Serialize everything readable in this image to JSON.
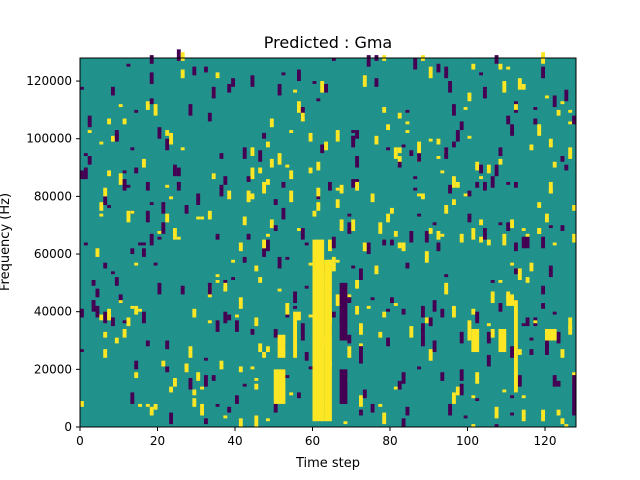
{
  "chart_data": {
    "type": "heatmap",
    "title": "Predicted : Gma",
    "xlabel": "Time step",
    "ylabel": "Frequency (Hz)",
    "x_range": [
      0,
      128
    ],
    "y_range": [
      0,
      128000
    ],
    "x_ticks": [
      0,
      20,
      40,
      60,
      80,
      100,
      120
    ],
    "y_ticks": [
      0,
      20000,
      40000,
      60000,
      80000,
      100000,
      120000
    ],
    "x_tick_labels": [
      "0",
      "20",
      "40",
      "60",
      "80",
      "100",
      "120"
    ],
    "y_tick_labels": [
      "0",
      "20000",
      "40000",
      "60000",
      "80000",
      "100000",
      "120000"
    ],
    "n_time_steps": 128,
    "n_freq_bins": 128,
    "grid": false,
    "legend": "none",
    "colormap": "viridis",
    "background_value": 0,
    "colors": {
      "low": "#440154",
      "mid": "#21918c",
      "high": "#fde725"
    },
    "high_regions": [
      {
        "x": [
          50,
          53
        ],
        "y": [
          8000,
          20000
        ]
      },
      {
        "x": [
          51,
          53
        ],
        "y": [
          24000,
          32000
        ]
      },
      {
        "x": [
          60,
          63
        ],
        "y": [
          2000,
          65000
        ]
      },
      {
        "x": [
          63,
          65
        ],
        "y": [
          2000,
          58000
        ]
      },
      {
        "x": [
          55,
          56
        ],
        "y": [
          24000,
          40000
        ]
      },
      {
        "x": [
          101,
          103
        ],
        "y": [
          26000,
          34000
        ]
      },
      {
        "x": [
          108,
          110
        ],
        "y": [
          26000,
          34000
        ]
      },
      {
        "x": [
          112,
          113
        ],
        "y": [
          12000,
          44000
        ]
      },
      {
        "x": [
          120,
          123
        ],
        "y": [
          30000,
          34000
        ]
      },
      {
        "x": [
          110,
          112
        ],
        "y": [
          42000,
          46000
        ]
      }
    ],
    "low_regions": [
      {
        "x": [
          67,
          69
        ],
        "y": [
          8000,
          20000
        ]
      },
      {
        "x": [
          72,
          73
        ],
        "y": [
          22000,
          28000
        ]
      },
      {
        "x": [
          57,
          58
        ],
        "y": [
          30000,
          36000
        ]
      },
      {
        "x": [
          127,
          128
        ],
        "y": [
          4000,
          18000
        ]
      },
      {
        "x": [
          114,
          116
        ],
        "y": [
          62000,
          66000
        ]
      },
      {
        "x": [
          67,
          69
        ],
        "y": [
          30000,
          50000
        ]
      }
    ]
  }
}
